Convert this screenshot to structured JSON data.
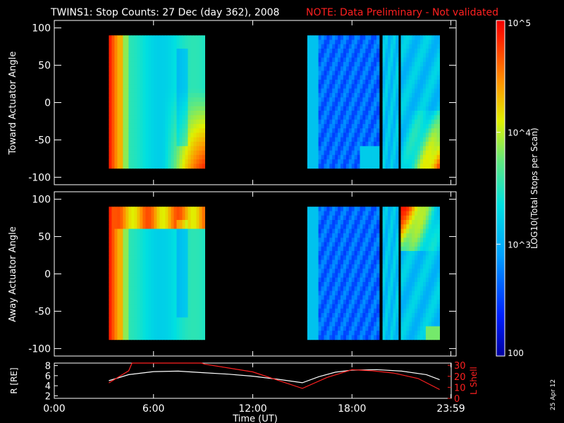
{
  "header": {
    "title": "TWINS1: Stop Counts: 27 Dec (day 362), 2008",
    "note": "NOTE: Data Preliminary - Not validated"
  },
  "footer": {
    "date_stamp": "25 Apr 12"
  },
  "colors": {
    "background": "#000000",
    "frame": "#ffffff",
    "note": "#ff2020",
    "lshell": "#ff2020",
    "radius": "#ffffff"
  },
  "chart_data": [
    {
      "type": "heatmap",
      "panel": "toward",
      "ylabel": "Toward Actuator Angle",
      "ylim": [
        -110,
        110
      ],
      "yticks": [
        100,
        50,
        0,
        -50,
        -100
      ],
      "xlim": [
        0,
        24
      ],
      "angle_range": [
        -88,
        90
      ],
      "segments": [
        {
          "start": 3.3,
          "end": 9.1,
          "base": "cyan-yellow"
        },
        {
          "start": 15.3,
          "end": 19.65,
          "base": "blue"
        },
        {
          "start": 19.85,
          "end": 20.8,
          "base": "cyan"
        },
        {
          "start": 20.95,
          "end": 23.3,
          "base": "cyan"
        }
      ]
    },
    {
      "type": "heatmap",
      "panel": "away",
      "ylabel": "Away Actuator Angle",
      "ylim": [
        -110,
        110
      ],
      "yticks": [
        100,
        50,
        0,
        -50,
        -100
      ],
      "xlim": [
        0,
        24
      ],
      "angle_range": [
        -88,
        90
      ],
      "segments": [
        {
          "start": 3.3,
          "end": 9.1,
          "base": "cyan-yellow"
        },
        {
          "start": 15.3,
          "end": 19.65,
          "base": "blue"
        },
        {
          "start": 19.85,
          "end": 20.8,
          "base": "cyan"
        },
        {
          "start": 20.95,
          "end": 23.3,
          "base": "cyan"
        }
      ]
    },
    {
      "type": "line",
      "panel": "orbit",
      "ylabel": "R [RE]",
      "y2label": "L Shell",
      "ylim": [
        1.5,
        8.5
      ],
      "yticks": [
        2,
        4,
        6,
        8
      ],
      "y2lim": [
        0,
        32
      ],
      "y2ticks": [
        0,
        10,
        20,
        30
      ],
      "xlim": [
        0,
        24
      ],
      "xticks": [
        "0:00",
        "6:00",
        "12:00",
        "18:00",
        "23:59"
      ],
      "xtick_values": [
        0,
        6,
        12,
        18,
        23.98
      ],
      "xlabel": "Time (UT)",
      "series": [
        {
          "name": "R",
          "x": [
            3.3,
            4.5,
            6,
            7.5,
            9,
            10.5,
            12,
            13.5,
            15,
            16,
            17,
            18,
            19.5,
            21,
            22.5,
            23.3
          ],
          "y": [
            5.0,
            6.2,
            6.8,
            6.9,
            6.6,
            6.3,
            5.9,
            5.3,
            4.6,
            5.8,
            6.7,
            7.1,
            7.2,
            6.9,
            6.2,
            5.2
          ]
        },
        {
          "name": "L Shell",
          "x": [
            3.3,
            4.5,
            4.7,
            8.9,
            9.1,
            12,
            15,
            16.5,
            18,
            19.2,
            20.5,
            22,
            23.3
          ],
          "y": [
            14,
            25,
            32,
            32,
            31,
            24,
            9,
            19,
            26,
            25,
            23,
            18,
            8
          ]
        }
      ]
    },
    {
      "type": "colorbar",
      "label": "LOG10(Total Stops per Scan)",
      "labels": [
        "10^5",
        "10^4",
        "10^3",
        "100"
      ],
      "values": [
        100000,
        10000,
        1000,
        100
      ],
      "range": [
        100,
        100000
      ],
      "scale": "log"
    }
  ]
}
